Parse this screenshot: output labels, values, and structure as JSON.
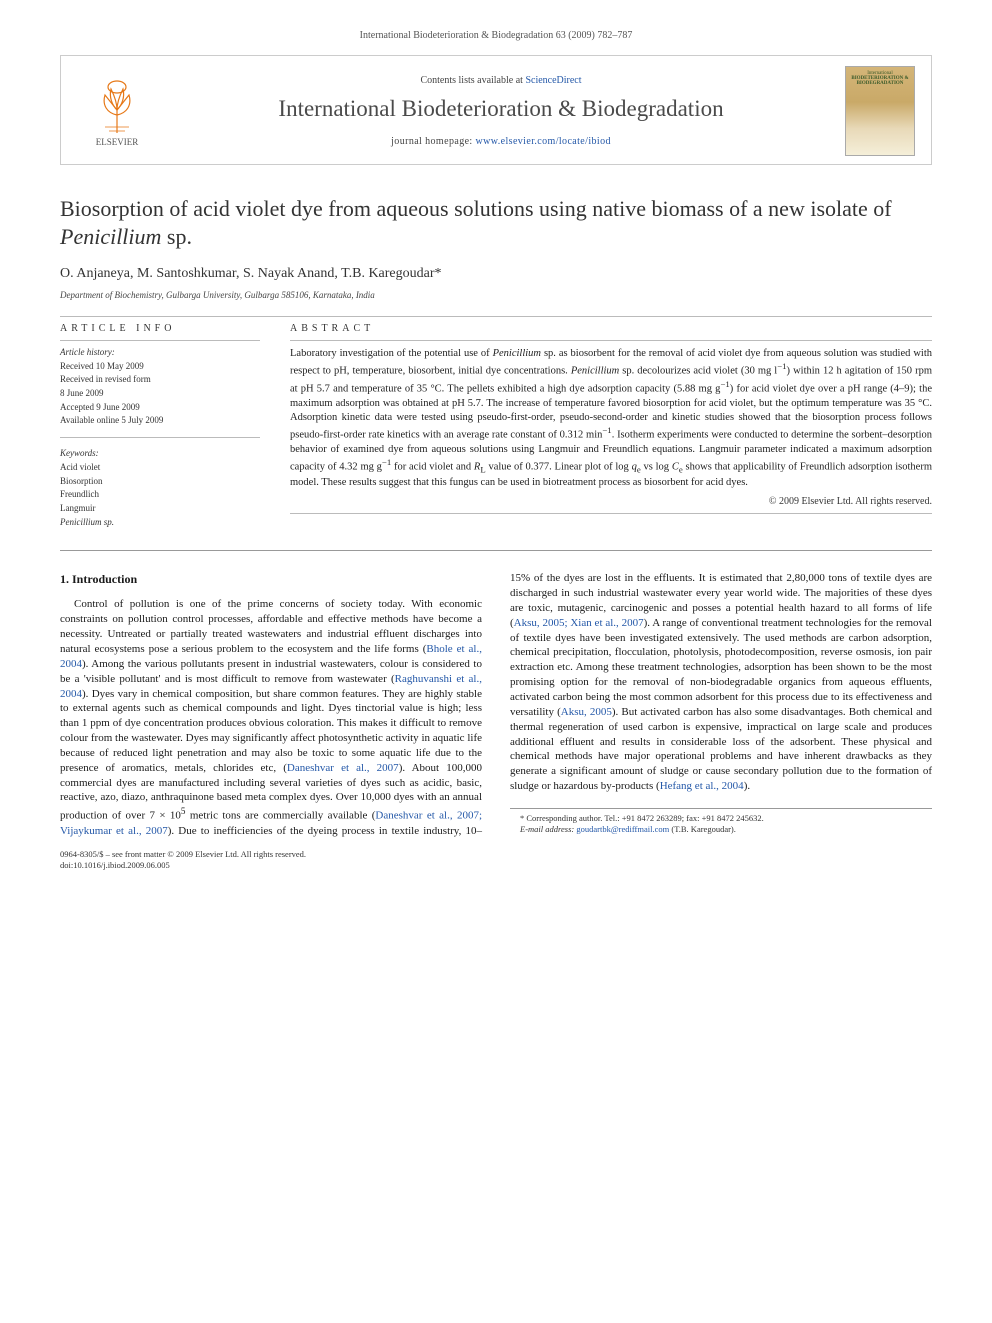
{
  "running_header": "International Biodeterioration & Biodegradation 63 (2009) 782–787",
  "banner": {
    "publisher_label": "ELSEVIER",
    "contents_prefix": "Contents lists available at ",
    "contents_link": "ScienceDirect",
    "journal_name": "International Biodeterioration & Biodegradation",
    "homepage_prefix": "journal homepage: ",
    "homepage_url": "www.elsevier.com/locate/ibiod",
    "cover_caption_top": "International",
    "cover_caption_mid": "BIODETERIORATION & BIODEGRADATION"
  },
  "article": {
    "title_html": "Biosorption of acid violet dye from aqueous solutions using native biomass of a new isolate of <em>Penicillium</em> sp.",
    "authors": "O. Anjaneya, M. Santoshkumar, S. Nayak Anand, T.B. Karegoudar*",
    "affiliation": "Department of Biochemistry, Gulbarga University, Gulbarga 585106, Karnataka, India"
  },
  "info": {
    "heading": "ARTICLE INFO",
    "history_label": "Article history:",
    "history": [
      "Received 10 May 2009",
      "Received in revised form",
      "8 June 2009",
      "Accepted 9 June 2009",
      "Available online 5 July 2009"
    ],
    "keywords_label": "Keywords:",
    "keywords": [
      "Acid violet",
      "Biosorption",
      "Freundlich",
      "Langmuir",
      "Penicillium sp."
    ]
  },
  "abstract": {
    "heading": "ABSTRACT",
    "text_html": "Laboratory investigation of the potential use of <em>Penicillium</em> sp. as biosorbent for the removal of acid violet dye from aqueous solution was studied with respect to pH, temperature, biosorbent, initial dye concentrations. <em>Penicillium</em> sp. decolourizes acid violet (30 mg l<sup>−1</sup>) within 12 h agitation of 150 rpm at pH 5.7 and temperature of 35 °C. The pellets exhibited a high dye adsorption capacity (5.88 mg g<sup>−1</sup>) for acid violet dye over a pH range (4–9); the maximum adsorption was obtained at pH 5.7. The increase of temperature favored biosorption for acid violet, but the optimum temperature was 35 °C. Adsorption kinetic data were tested using pseudo-first-order, pseudo-second-order and kinetic studies showed that the biosorption process follows pseudo-first-order rate kinetics with an average rate constant of 0.312 min<sup>−1</sup>. Isotherm experiments were conducted to determine the sorbent–desorption behavior of examined dye from aqueous solutions using Langmuir and Freundlich equations. Langmuir parameter indicated a maximum adsorption capacity of 4.32 mg g<sup>−1</sup> for acid violet and <em>R</em><sub>L</sub> value of 0.377. Linear plot of log <em>q</em><sub>e</sub> vs log <em>C</em><sub>e</sub> shows that applicability of Freundlich adsorption isotherm model. These results suggest that this fungus can be used in biotreatment process as biosorbent for acid dyes.",
    "copyright": "© 2009 Elsevier Ltd. All rights reserved."
  },
  "body": {
    "section_heading": "1. Introduction",
    "paragraph_html": "Control of pollution is one of the prime concerns of society today. With economic constraints on pollution control processes, affordable and effective methods have become a necessity. Untreated or partially treated wastewaters and industrial effluent discharges into natural ecosystems pose a serious problem to the ecosystem and the life forms (<a href='#'>Bhole et al., 2004</a>). Among the various pollutants present in industrial wastewaters, colour is considered to be a 'visible pollutant' and is most difficult to remove from wastewater (<a href='#'>Raghuvanshi et al., 2004</a>). Dyes vary in chemical composition, but share common features. They are highly stable to external agents such as chemical compounds and light. Dyes tinctorial value is high; less than 1 ppm of dye concentration produces obvious coloration. This makes it difficult to remove colour from the wastewater. Dyes may significantly affect photosynthetic activity in aquatic life because of reduced light penetration and may also be toxic to some aquatic life due to the presence of aromatics, metals, chlorides etc, (<a href='#'>Daneshvar et al., 2007</a>). About 100,000 commercial dyes are manufactured including several varieties of dyes such as acidic, basic, reactive, azo, diazo, anthraquinone based meta complex dyes. Over 10,000 dyes with an annual production of over 7 × 10<sup>5</sup> metric tons are commercially available (<a href='#'>Daneshvar et al., 2007; Vijaykumar et al., 2007</a>). Due to inefficiencies of the dyeing process in textile industry, 10–15% of the dyes are lost in the effluents. It is estimated that 2,80,000 tons of textile dyes are discharged in such industrial wastewater every year world wide. The majorities of these dyes are toxic, mutagenic, carcinogenic and posses a potential health hazard to all forms of life (<a href='#'>Aksu, 2005; Xian et al., 2007</a>). A range of conventional treatment technologies for the removal of textile dyes have been investigated extensively. The used methods are carbon adsorption, chemical precipitation, flocculation, photolysis, photodecomposition, reverse osmosis, ion pair extraction etc. Among these treatment technologies, adsorption has been shown to be the most promising option for the removal of non-biodegradable organics from aqueous effluents, activated carbon being the most common adsorbent for this process due to its effectiveness and versatility (<a href='#'>Aksu, 2005</a>). But activated carbon has also some disadvantages. Both chemical and thermal regeneration of used carbon is expensive, impractical on large scale and produces additional effluent and results in considerable loss of the adsorbent. These physical and chemical methods have major operational problems and have inherent drawbacks as they generate a significant amount of sludge or cause secondary pollution due to the formation of sludge or hazardous by-products (<a href='#'>Hefang et al., 2004</a>)."
  },
  "footnote": {
    "corr_line": "* Corresponding author. Tel.: +91 8472 263289; fax: +91 8472 245632.",
    "email_label": "E-mail address:",
    "email": "goudartbk@rediffmail.com",
    "email_suffix": "(T.B. Karegoudar)."
  },
  "footer": {
    "line1": "0964-8305/$ – see front matter © 2009 Elsevier Ltd. All rights reserved.",
    "line2": "doi:10.1016/j.ibiod.2009.06.005"
  },
  "colors": {
    "link": "#2458a8",
    "elsevier_orange": "#e67817",
    "text": "#1a1a1a",
    "rule": "#999999"
  },
  "typography": {
    "body_fontsize_pt": 11,
    "abstract_fontsize_pt": 10.5,
    "title_fontsize_pt": 22,
    "journal_fontsize_pt": 23,
    "footnote_fontsize_pt": 8.5
  }
}
